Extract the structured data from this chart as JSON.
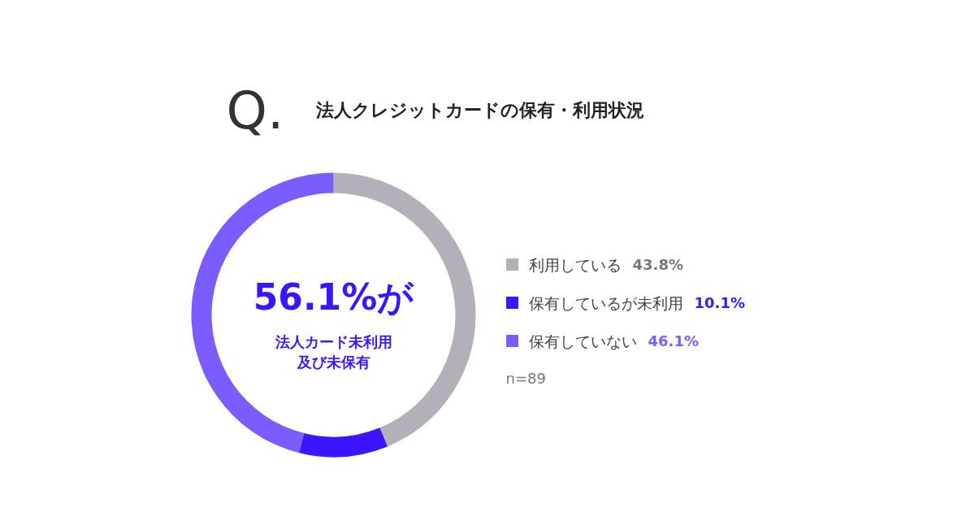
{
  "chart_data": {
    "type": "donut",
    "title": "法人クレジットカードの保有・利用状況",
    "categories": [
      "利用している",
      "保有しているが未利用",
      "保有していない"
    ],
    "values": [
      43.8,
      10.1,
      46.1
    ],
    "colors": [
      "#b4afb8",
      "#3c14ff",
      "#7c5cff"
    ],
    "value_labels": [
      "43.8%",
      "10.1%",
      "46.1%"
    ],
    "legend": "right",
    "annotations": [
      "Q.",
      "56.1%が",
      "法人カード未利用",
      "及び未保有",
      "n=89"
    ]
  }
}
